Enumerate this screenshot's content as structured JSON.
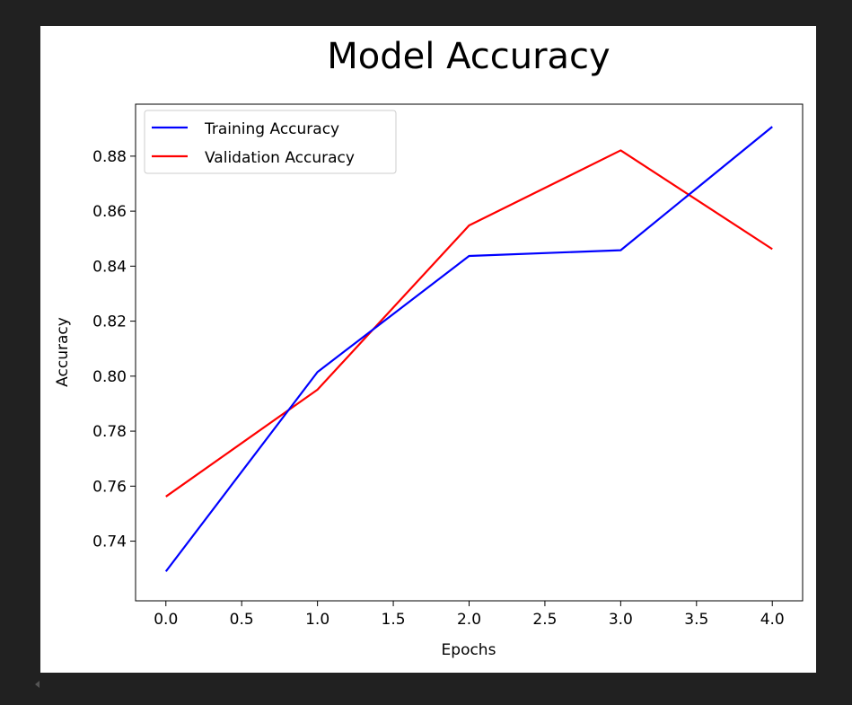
{
  "chart_data": {
    "type": "line",
    "title": "Model Accuracy",
    "xlabel": "Epochs",
    "ylabel": "Accuracy",
    "x": [
      0,
      1,
      2,
      3,
      4
    ],
    "xlim": [
      -0.2,
      4.2
    ],
    "ylim": [
      0.7183,
      0.8989
    ],
    "xticks": [
      0.0,
      0.5,
      1.0,
      1.5,
      2.0,
      2.5,
      3.0,
      3.5,
      4.0
    ],
    "xtick_labels": [
      "0.0",
      "0.5",
      "1.0",
      "1.5",
      "2.0",
      "2.5",
      "3.0",
      "3.5",
      "4.0"
    ],
    "yticks": [
      0.74,
      0.76,
      0.78,
      0.8,
      0.82,
      0.84,
      0.86,
      0.88
    ],
    "ytick_labels": [
      "0.74",
      "0.76",
      "0.78",
      "0.80",
      "0.82",
      "0.84",
      "0.86",
      "0.88"
    ],
    "grid": false,
    "legend_position": "upper-left",
    "series": [
      {
        "name": "Training Accuracy",
        "color": "#0000ff",
        "values": [
          0.729,
          0.8015,
          0.8437,
          0.8458,
          0.8907
        ]
      },
      {
        "name": "Validation Accuracy",
        "color": "#ff0000",
        "values": [
          0.7562,
          0.7951,
          0.8548,
          0.8821,
          0.8462
        ]
      }
    ]
  }
}
